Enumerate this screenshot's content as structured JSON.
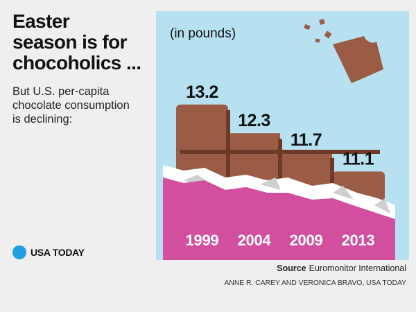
{
  "title": "Easter\nseason is for\nchocoholics ...",
  "subtitle": "But U.S. per-capita\nchocolate consumption\nis declining:",
  "brand": {
    "name": "USA TODAY",
    "color": "#1e9fde"
  },
  "source": {
    "label": "Source",
    "text": "Euromonitor International"
  },
  "credit": "ANNE R. CAREY AND VERONICA BRAVO, USA TODAY",
  "colors": {
    "panel_background": "#b7e1f0",
    "chocolate": "#9a5c45",
    "chocolate_groove": "#6e3a27",
    "wrapper": "#d14f9e",
    "foil": "#ffffff",
    "foil_shadow": "#cfcfcf",
    "text": "#111111",
    "year_text": "#ffffff"
  },
  "chart_data": {
    "type": "bar",
    "unit_label": "(in pounds)",
    "categories": [
      "1999",
      "2004",
      "2009",
      "2013"
    ],
    "values": [
      13.2,
      12.3,
      11.7,
      11.1
    ],
    "value_labels": [
      "13.2",
      "12.3",
      "11.7",
      "11.1"
    ],
    "ylim": [
      0,
      14
    ]
  }
}
